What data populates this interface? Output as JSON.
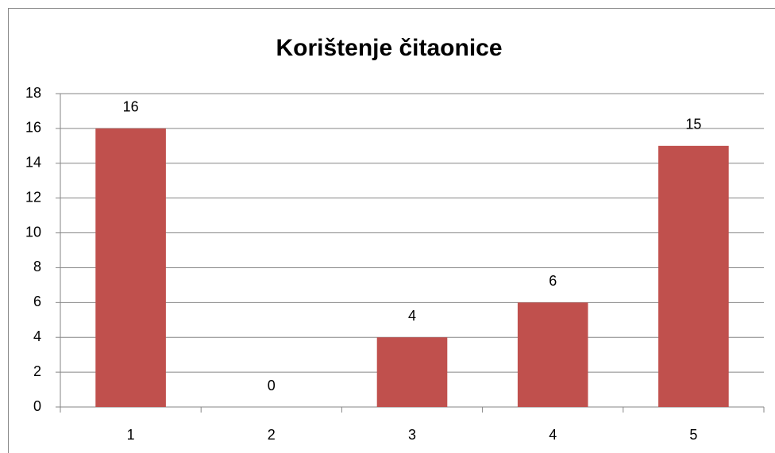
{
  "chart_data": {
    "type": "bar",
    "title": "Korištenje čitaonice",
    "categories": [
      "1",
      "2",
      "3",
      "4",
      "5"
    ],
    "values": [
      16,
      0,
      4,
      6,
      15
    ],
    "color": "#c0504d",
    "ylim": [
      0,
      18
    ],
    "yticks": [
      0,
      2,
      4,
      6,
      8,
      10,
      12,
      14,
      16,
      18
    ],
    "grid": true
  }
}
